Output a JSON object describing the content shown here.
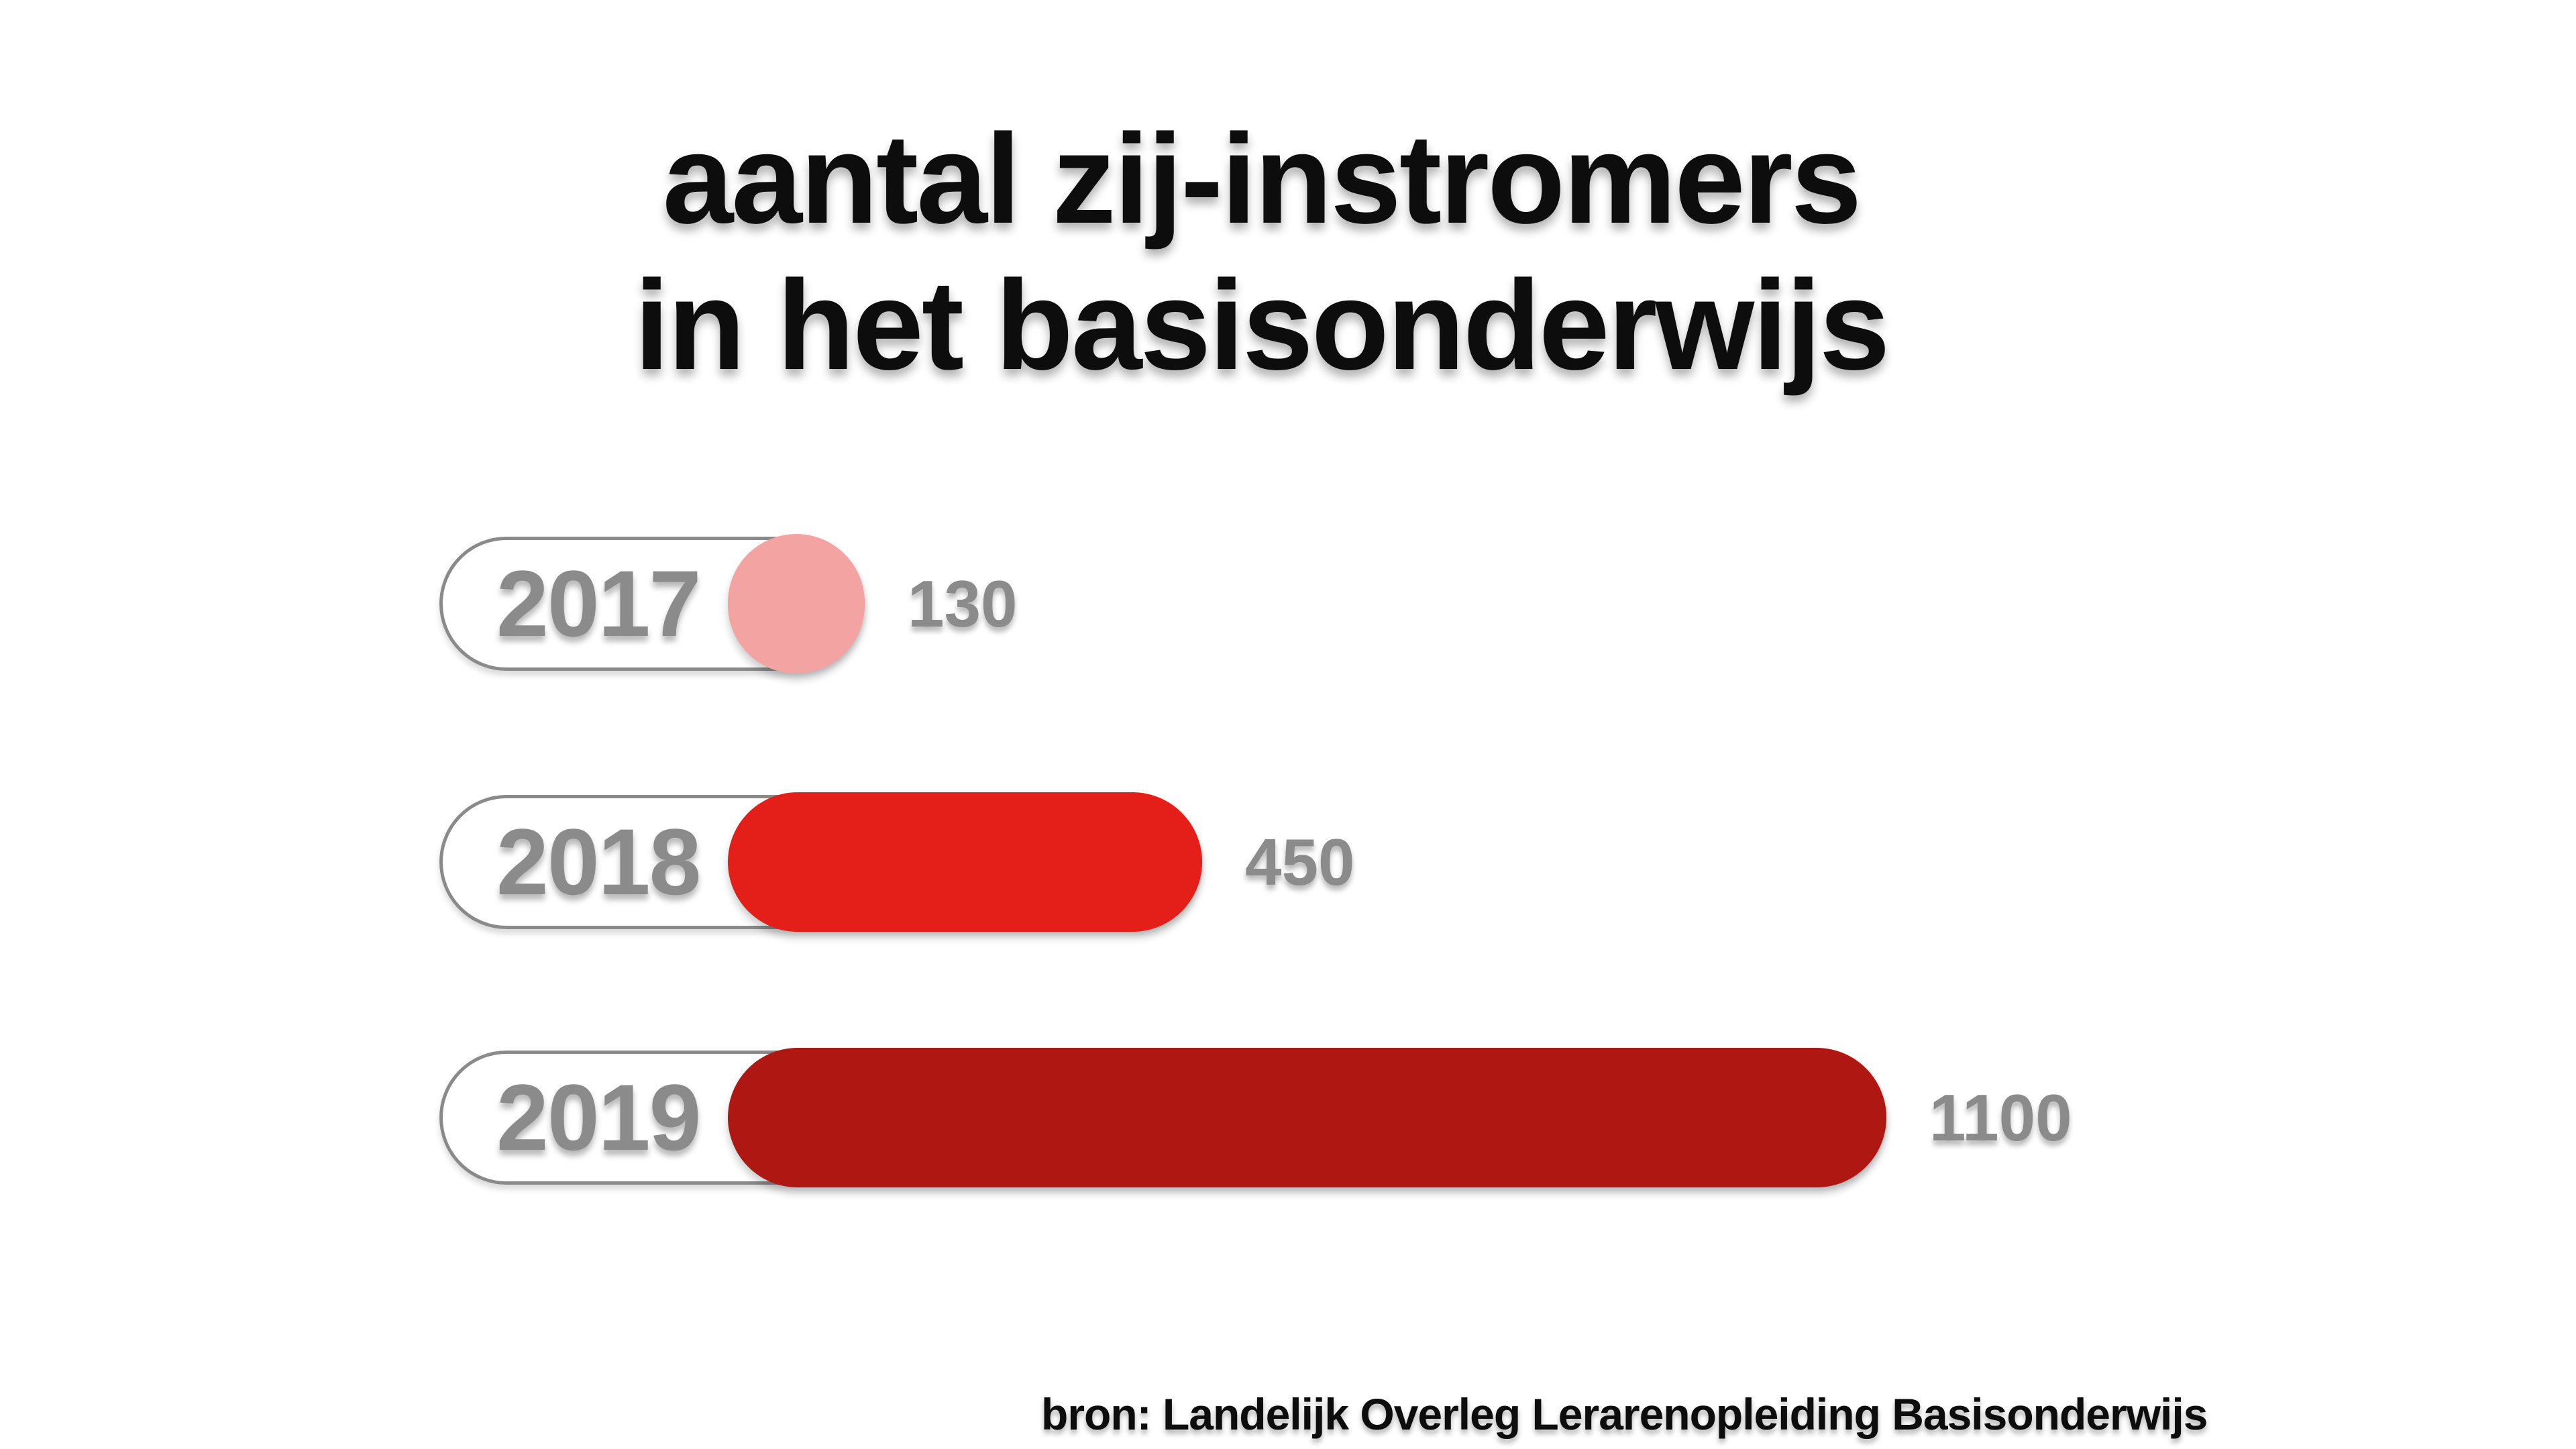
{
  "page": {
    "background": "#ffffff"
  },
  "title": {
    "line1": "aantal zij-instromers",
    "line2": "in het basisonderwijs"
  },
  "rows": [
    {
      "year": "2017",
      "value_label": "130"
    },
    {
      "year": "2018",
      "value_label": "450"
    },
    {
      "year": "2019",
      "value_label": "1100"
    }
  ],
  "source": "bron: Landelijk Overleg Lerarenopleiding Basisonderwijs",
  "colors": {
    "bar_2017": "#f4a3a3",
    "bar_2018": "#e41e18",
    "bar_2019": "#af1712",
    "outline_gray": "#8a8a8a",
    "label_gray": "#8b8b8b",
    "text_black": "#0d0d0d"
  },
  "chart_data": {
    "type": "bar",
    "orientation": "horizontal",
    "title": "aantal zij-instromers in het basisonderwijs",
    "categories": [
      "2017",
      "2018",
      "2019"
    ],
    "values": [
      130,
      450,
      1100
    ],
    "value_labels": [
      "130",
      "450",
      "1100"
    ],
    "bar_colors": [
      "#f4a3a3",
      "#e41e18",
      "#af1712"
    ],
    "xlim": [
      0,
      1100
    ],
    "grid": false,
    "legend": false,
    "value_labels_position": "right-of-bar",
    "category_labels_position": "inside-pill-left",
    "source": "bron: Landelijk Overleg Lerarenopleiding Basisonderwijs"
  }
}
